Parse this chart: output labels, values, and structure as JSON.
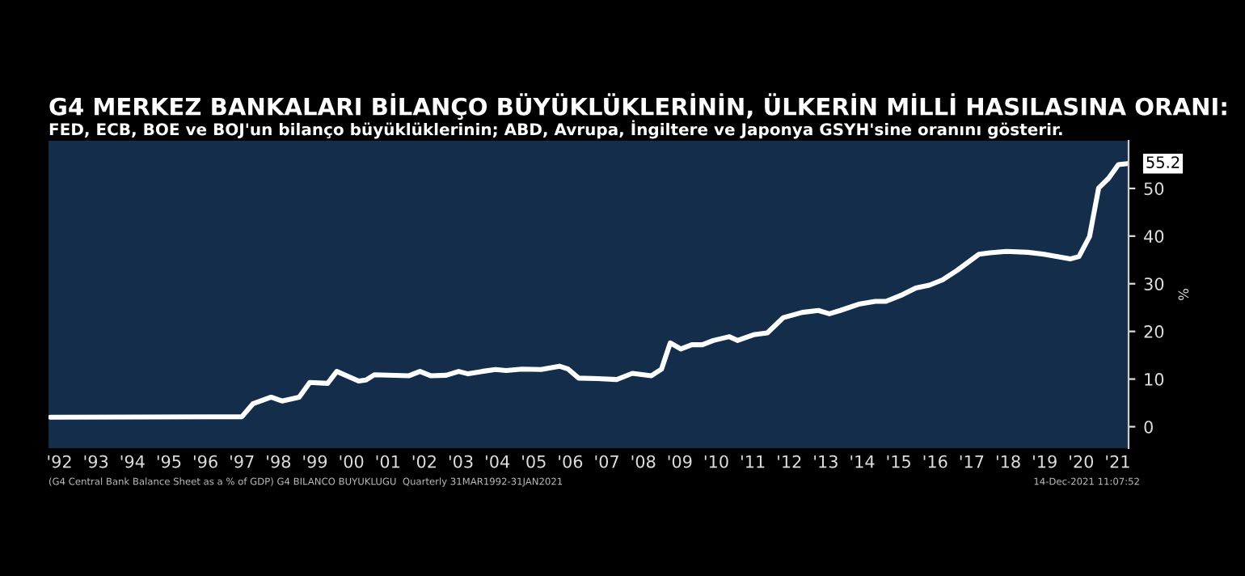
{
  "chart_data": {
    "type": "line",
    "title": "G4 MERKEZ BANKALARI BİLANÇO BÜYÜKLÜKLERİNİN, ÜLKERİN MİLLİ HASILASINA ORANI:",
    "subtitle": "FED, ECB, BOE ve BOJ'un bilanço büyüklüklerinin; ABD, Avrupa, İngiltere ve Japonya GSYH'sine oranını gösterir.",
    "ylabel": "%",
    "x": [
      1991.75,
      1997.0,
      1997.3,
      1997.8,
      1998.1,
      1998.57,
      1998.86,
      1999.35,
      1999.6,
      2000.2,
      2000.4,
      2000.63,
      2001.58,
      2001.88,
      2002.17,
      2002.6,
      2002.94,
      2003.2,
      2003.58,
      2003.95,
      2004.24,
      2004.68,
      2005.2,
      2005.7,
      2005.94,
      2006.23,
      2006.75,
      2007.27,
      2007.7,
      2008.22,
      2008.5,
      2008.74,
      2009.03,
      2009.33,
      2009.62,
      2009.92,
      2010.36,
      2010.58,
      2011.02,
      2011.4,
      2011.84,
      2012.36,
      2012.8,
      2013.1,
      2013.4,
      2013.9,
      2014.36,
      2014.65,
      2015.1,
      2015.47,
      2015.84,
      2016.2,
      2016.6,
      2017.2,
      2017.5,
      2017.95,
      2018.54,
      2018.98,
      2019.7,
      2019.94,
      2020.23,
      2020.48,
      2020.75,
      2021.02,
      2021.27
    ],
    "values": [
      2.0,
      2.1,
      4.8,
      6.2,
      5.4,
      6.2,
      9.3,
      9.1,
      11.6,
      9.6,
      9.8,
      10.9,
      10.7,
      11.6,
      10.7,
      10.8,
      11.6,
      11.1,
      11.6,
      12.0,
      11.8,
      12.1,
      12.0,
      12.7,
      12.1,
      10.2,
      10.1,
      9.9,
      11.2,
      10.7,
      12.1,
      17.6,
      16.3,
      17.2,
      17.2,
      18.1,
      18.9,
      18.1,
      19.3,
      19.7,
      22.9,
      24.0,
      24.4,
      23.7,
      24.4,
      25.7,
      26.3,
      26.3,
      27.7,
      29.1,
      29.7,
      30.8,
      32.8,
      36.2,
      36.5,
      36.8,
      36.6,
      36.2,
      35.2,
      35.7,
      39.9,
      50.1,
      52.1,
      55.0,
      55.2
    ],
    "value_labels": [
      null,
      null,
      null,
      null,
      null,
      null,
      null,
      null,
      null,
      null,
      null,
      null,
      null,
      null,
      null,
      null,
      null,
      null,
      null,
      null,
      null,
      null,
      null,
      null,
      null,
      null,
      null,
      null,
      null,
      null,
      null,
      null,
      null,
      null,
      null,
      null,
      null,
      null,
      null,
      null,
      null,
      null,
      null,
      null,
      null,
      null,
      null,
      null,
      null,
      null,
      null,
      null,
      null,
      null,
      null,
      null,
      null,
      null,
      null,
      null,
      null,
      null,
      null,
      null,
      "55.2"
    ],
    "color": "#ffffff",
    "xlim": [
      1991.7,
      2021.3
    ],
    "xticks": [
      {
        "value": 1992,
        "label": "'92"
      },
      {
        "value": 1993,
        "label": "'93"
      },
      {
        "value": 1994,
        "label": "'94"
      },
      {
        "value": 1995,
        "label": "'95"
      },
      {
        "value": 1996,
        "label": "'96"
      },
      {
        "value": 1997,
        "label": "'97"
      },
      {
        "value": 1998,
        "label": "'98"
      },
      {
        "value": 1999,
        "label": "'99"
      },
      {
        "value": 2000,
        "label": "'00"
      },
      {
        "value": 2001,
        "label": "'01"
      },
      {
        "value": 2002,
        "label": "'02"
      },
      {
        "value": 2003,
        "label": "'03"
      },
      {
        "value": 2004,
        "label": "'04"
      },
      {
        "value": 2005,
        "label": "'05"
      },
      {
        "value": 2006,
        "label": "'06"
      },
      {
        "value": 2007,
        "label": "'07"
      },
      {
        "value": 2008,
        "label": "'08"
      },
      {
        "value": 2009,
        "label": "'09"
      },
      {
        "value": 2010,
        "label": "'10"
      },
      {
        "value": 2011,
        "label": "'11"
      },
      {
        "value": 2012,
        "label": "'12"
      },
      {
        "value": 2013,
        "label": "'13"
      },
      {
        "value": 2014,
        "label": "'14"
      },
      {
        "value": 2015,
        "label": "'15"
      },
      {
        "value": 2016,
        "label": "'16"
      },
      {
        "value": 2017,
        "label": "'17"
      },
      {
        "value": 2018,
        "label": "'18"
      },
      {
        "value": 2019,
        "label": "'19"
      },
      {
        "value": 2020,
        "label": "'20"
      },
      {
        "value": 2021,
        "label": "'21"
      }
    ],
    "ylim": [
      -4.5,
      60
    ],
    "yticks": [
      0,
      10,
      20,
      30,
      40,
      50
    ],
    "grid": false,
    "annotations": [
      "(G4 Central Bank Balance Sheet as a % of GDP) G4 BILANCO BUYUKLUGU  Quarterly 31MAR1992-31JAN2021",
      "14-Dec-2021 11:07:52"
    ]
  }
}
